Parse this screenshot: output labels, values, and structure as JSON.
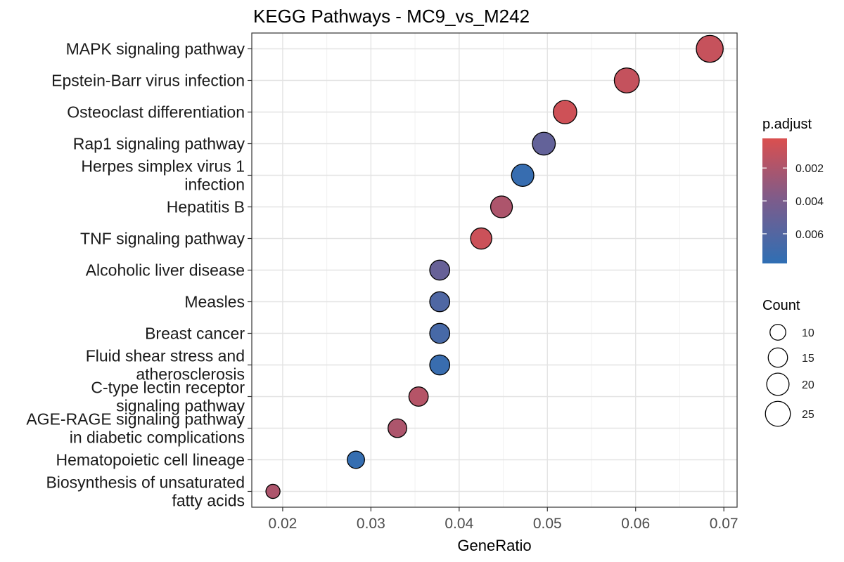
{
  "chart_data": {
    "type": "scatter",
    "title": "KEGG Pathways - MC9_vs_M242",
    "xlabel": "GeneRatio",
    "ylabel": "",
    "xlim": [
      0.0165,
      0.0715
    ],
    "xticks": [
      0.02,
      0.03,
      0.04,
      0.05,
      0.06,
      0.07
    ],
    "xtick_labels": [
      "0.02",
      "0.03",
      "0.04",
      "0.05",
      "0.06",
      "0.07"
    ],
    "grid": true,
    "legend_position": "right",
    "points": [
      {
        "label": [
          "MAPK signaling pathway"
        ],
        "x": 0.0684,
        "count": 29,
        "p_adjust": 0.001
      },
      {
        "label": [
          "Epstein-Barr virus infection"
        ],
        "x": 0.059,
        "count": 25,
        "p_adjust": 0.0011
      },
      {
        "label": [
          "Osteoclast differentiation"
        ],
        "x": 0.052,
        "count": 22,
        "p_adjust": 0.0007
      },
      {
        "label": [
          "Rap1 signaling pathway"
        ],
        "x": 0.0496,
        "count": 21,
        "p_adjust": 0.0052
      },
      {
        "label": [
          "Herpes simplex virus 1",
          "infection"
        ],
        "x": 0.0472,
        "count": 20,
        "p_adjust": 0.0074
      },
      {
        "label": [
          "Hepatitis B"
        ],
        "x": 0.0448,
        "count": 19,
        "p_adjust": 0.002
      },
      {
        "label": [
          "TNF signaling pathway"
        ],
        "x": 0.0425,
        "count": 18,
        "p_adjust": 0.0008
      },
      {
        "label": [
          "Alcoholic liver disease"
        ],
        "x": 0.0378,
        "count": 16,
        "p_adjust": 0.005
      },
      {
        "label": [
          "Measles"
        ],
        "x": 0.0378,
        "count": 16,
        "p_adjust": 0.0062
      },
      {
        "label": [
          "Breast cancer"
        ],
        "x": 0.0378,
        "count": 16,
        "p_adjust": 0.0066
      },
      {
        "label": [
          "Fluid shear stress and",
          "atherosclerosis"
        ],
        "x": 0.0378,
        "count": 16,
        "p_adjust": 0.0073
      },
      {
        "label": [
          "C-type lectin receptor",
          "signaling pathway"
        ],
        "x": 0.0354,
        "count": 15,
        "p_adjust": 0.0017
      },
      {
        "label": [
          "AGE-RAGE signaling pathway",
          "in diabetic complications"
        ],
        "x": 0.033,
        "count": 14,
        "p_adjust": 0.002
      },
      {
        "label": [
          "Hematopoietic cell lineage"
        ],
        "x": 0.0283,
        "count": 12,
        "p_adjust": 0.0075
      },
      {
        "label": [
          "Biosynthesis of unsaturated",
          "fatty acids"
        ],
        "x": 0.0189,
        "count": 8,
        "p_adjust": 0.002
      }
    ],
    "color_legend": {
      "title": "p.adjust",
      "low_color": "#2F6FB4",
      "mid_color": "#7B5C8C",
      "high_color": "#DA4F4F",
      "range": [
        0.0002,
        0.0078
      ],
      "ticks": [
        0.002,
        0.004,
        0.006
      ],
      "tick_labels": [
        "0.002",
        "0.004",
        "0.006"
      ]
    },
    "size_legend": {
      "title": "Count",
      "values": [
        10,
        15,
        20,
        25
      ],
      "labels": [
        "10",
        "15",
        "20",
        "25"
      ]
    }
  }
}
